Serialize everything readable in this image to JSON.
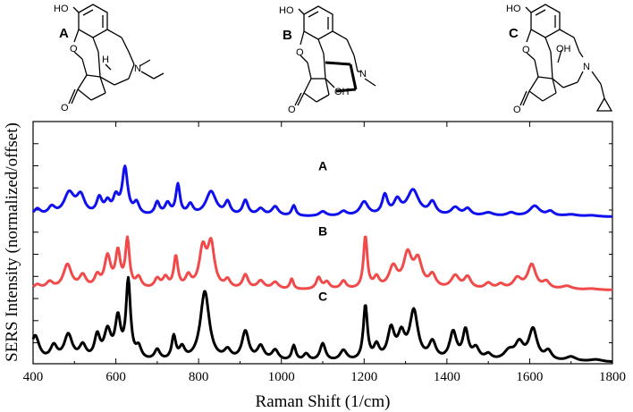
{
  "molecules": [
    {
      "label": "A",
      "atoms": {
        "oh": "HO",
        "o": "O",
        "h": "H",
        "n": "N",
        "ketone": "O"
      }
    },
    {
      "label": "B",
      "atoms": {
        "oh": "HO",
        "o": "O",
        "n": "N",
        "oh2": "OH",
        "ketone": "O"
      }
    },
    {
      "label": "C",
      "atoms": {
        "oh": "HO",
        "o": "O",
        "n": "N",
        "oh2": "OH",
        "ketone": "O"
      }
    }
  ],
  "chart_data": {
    "type": "line",
    "title": "",
    "xlabel": "Raman Shift (1/cm)",
    "ylabel": "SERS Intensity (normalized/offset)",
    "xlim": [
      400,
      1800
    ],
    "ylim": [
      0,
      10.4
    ],
    "x_ticks": [
      400,
      600,
      800,
      1000,
      1200,
      1400,
      1600,
      1800
    ],
    "grid": false,
    "legend": "inline labels",
    "series": [
      {
        "name": "A",
        "color": "#1010ee",
        "label_x": 1100,
        "label_y": 8.3,
        "baseline": 6.3,
        "peaks": [
          [
            410,
            0.3,
            10
          ],
          [
            445,
            0.35,
            10
          ],
          [
            487,
            0.95,
            15
          ],
          [
            515,
            0.8,
            12
          ],
          [
            560,
            0.7,
            8
          ],
          [
            580,
            0.5,
            8
          ],
          [
            600,
            0.7,
            8
          ],
          [
            622,
            2.0,
            8
          ],
          [
            650,
            0.5,
            8
          ],
          [
            700,
            0.55,
            7
          ],
          [
            725,
            0.5,
            8
          ],
          [
            750,
            1.3,
            6
          ],
          [
            780,
            0.45,
            8
          ],
          [
            830,
            1.05,
            15
          ],
          [
            870,
            0.55,
            8
          ],
          [
            913,
            0.65,
            8
          ],
          [
            950,
            0.3,
            10
          ],
          [
            985,
            0.4,
            10
          ],
          [
            1030,
            0.45,
            6
          ],
          [
            1100,
            0.2,
            10
          ],
          [
            1150,
            0.2,
            10
          ],
          [
            1200,
            0.6,
            12
          ],
          [
            1250,
            0.85,
            8
          ],
          [
            1280,
            0.6,
            10
          ],
          [
            1318,
            1.1,
            17
          ],
          [
            1365,
            0.55,
            10
          ],
          [
            1420,
            0.35,
            12
          ],
          [
            1450,
            0.3,
            10
          ],
          [
            1500,
            0.15,
            15
          ],
          [
            1555,
            0.15,
            12
          ],
          [
            1612,
            0.45,
            15
          ],
          [
            1650,
            0.2,
            10
          ],
          [
            1700,
            0.08,
            20
          ],
          [
            1750,
            0.05,
            20
          ]
        ]
      },
      {
        "name": "B",
        "color": "#f04a4a",
        "label_x": 1100,
        "label_y": 5.5,
        "baseline": 3.15,
        "peaks": [
          [
            410,
            0.2,
            10
          ],
          [
            440,
            0.3,
            10
          ],
          [
            483,
            1.05,
            12
          ],
          [
            520,
            0.55,
            10
          ],
          [
            555,
            0.5,
            8
          ],
          [
            580,
            1.35,
            9
          ],
          [
            605,
            1.5,
            7
          ],
          [
            628,
            2.05,
            6
          ],
          [
            655,
            0.45,
            8
          ],
          [
            700,
            0.4,
            8
          ],
          [
            720,
            0.45,
            8
          ],
          [
            745,
            1.35,
            6
          ],
          [
            775,
            0.5,
            8
          ],
          [
            810,
            1.65,
            10
          ],
          [
            830,
            1.85,
            10
          ],
          [
            870,
            0.35,
            8
          ],
          [
            913,
            0.6,
            8
          ],
          [
            950,
            0.35,
            10
          ],
          [
            985,
            0.3,
            10
          ],
          [
            1025,
            0.45,
            5
          ],
          [
            1090,
            0.5,
            7
          ],
          [
            1110,
            0.3,
            8
          ],
          [
            1150,
            0.35,
            8
          ],
          [
            1203,
            2.25,
            5.5
          ],
          [
            1230,
            0.45,
            8
          ],
          [
            1270,
            0.9,
            12
          ],
          [
            1305,
            1.4,
            12
          ],
          [
            1330,
            1.15,
            12
          ],
          [
            1365,
            0.55,
            10
          ],
          [
            1420,
            0.55,
            12
          ],
          [
            1450,
            0.5,
            10
          ],
          [
            1500,
            0.25,
            10
          ],
          [
            1530,
            0.2,
            10
          ],
          [
            1570,
            0.45,
            12
          ],
          [
            1605,
            1.05,
            12
          ],
          [
            1640,
            0.3,
            10
          ],
          [
            1690,
            0.15,
            15
          ],
          [
            1750,
            0.05,
            20
          ]
        ]
      },
      {
        "name": "C",
        "color": "#000000",
        "label_x": 1100,
        "label_y": 2.7,
        "baseline": 0.05,
        "peaks": [
          [
            405,
            1.1,
            12
          ],
          [
            450,
            0.6,
            10
          ],
          [
            485,
            1.1,
            12
          ],
          [
            520,
            0.6,
            10
          ],
          [
            555,
            1.0,
            8
          ],
          [
            580,
            1.2,
            10
          ],
          [
            605,
            1.7,
            8
          ],
          [
            630,
            3.35,
            6.5
          ],
          [
            655,
            0.5,
            8
          ],
          [
            700,
            0.45,
            8
          ],
          [
            740,
            1.0,
            6
          ],
          [
            760,
            0.5,
            8
          ],
          [
            815,
            3.0,
            13
          ],
          [
            870,
            0.4,
            10
          ],
          [
            913,
            1.25,
            10
          ],
          [
            950,
            0.6,
            10
          ],
          [
            985,
            0.45,
            10
          ],
          [
            1030,
            0.65,
            6
          ],
          [
            1060,
            0.3,
            8
          ],
          [
            1100,
            0.75,
            8
          ],
          [
            1150,
            0.45,
            10
          ],
          [
            1203,
            2.35,
            6
          ],
          [
            1230,
            0.6,
            8
          ],
          [
            1265,
            1.3,
            10
          ],
          [
            1290,
            1.0,
            10
          ],
          [
            1320,
            2.1,
            12
          ],
          [
            1365,
            0.75,
            10
          ],
          [
            1415,
            1.2,
            10
          ],
          [
            1445,
            1.25,
            8
          ],
          [
            1470,
            0.5,
            10
          ],
          [
            1500,
            0.25,
            10
          ],
          [
            1550,
            0.4,
            15
          ],
          [
            1575,
            0.7,
            12
          ],
          [
            1608,
            1.35,
            12
          ],
          [
            1645,
            0.4,
            10
          ],
          [
            1700,
            0.2,
            15
          ],
          [
            1760,
            0.1,
            20
          ]
        ]
      }
    ]
  }
}
